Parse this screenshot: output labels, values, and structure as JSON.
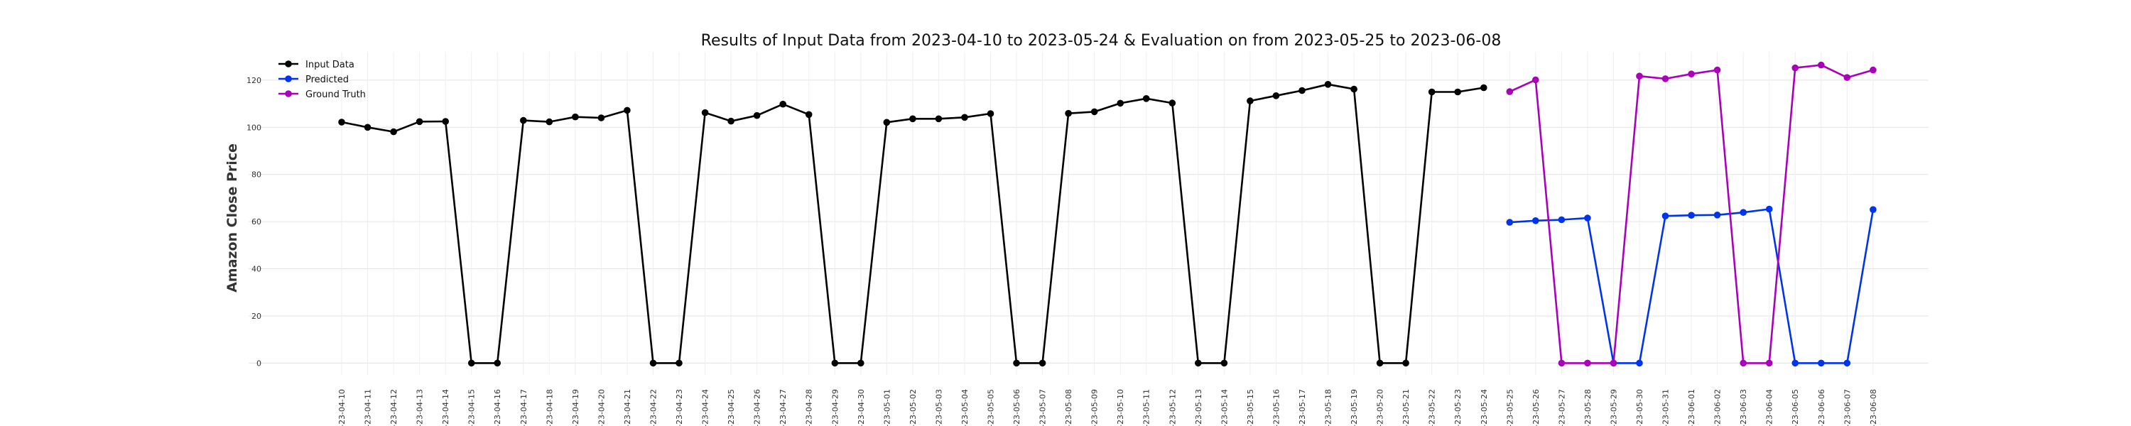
{
  "chart_data": {
    "type": "line",
    "title": "Results of Input Data from 2023-04-10 to 2023-05-24 & Evaluation on from 2023-05-25 to 2023-06-08",
    "xlabel": "",
    "ylabel": "Amazon Close Price",
    "ylim": [
      -5,
      132
    ],
    "yticks": [
      0,
      20,
      40,
      60,
      80,
      100,
      120
    ],
    "grid": true,
    "legend_position": "top-left",
    "categories": [
      "2023-04-10",
      "2023-04-11",
      "2023-04-12",
      "2023-04-13",
      "2023-04-14",
      "2023-04-15",
      "2023-04-16",
      "2023-04-17",
      "2023-04-18",
      "2023-04-19",
      "2023-04-20",
      "2023-04-21",
      "2023-04-22",
      "2023-04-23",
      "2023-04-24",
      "2023-04-25",
      "2023-04-26",
      "2023-04-27",
      "2023-04-28",
      "2023-04-29",
      "2023-04-30",
      "2023-05-01",
      "2023-05-02",
      "2023-05-03",
      "2023-05-04",
      "2023-05-05",
      "2023-05-06",
      "2023-05-07",
      "2023-05-08",
      "2023-05-09",
      "2023-05-10",
      "2023-05-11",
      "2023-05-12",
      "2023-05-13",
      "2023-05-14",
      "2023-05-15",
      "2023-05-16",
      "2023-05-17",
      "2023-05-18",
      "2023-05-19",
      "2023-05-20",
      "2023-05-21",
      "2023-05-22",
      "2023-05-23",
      "2023-05-24",
      "2023-05-25",
      "2023-05-26",
      "2023-05-27",
      "2023-05-28",
      "2023-05-29",
      "2023-05-30",
      "2023-05-31",
      "2023-06-01",
      "2023-06-02",
      "2023-06-03",
      "2023-06-04",
      "2023-06-05",
      "2023-06-06",
      "2023-06-07",
      "2023-06-08"
    ],
    "tick_labels": [
      "-23-04-10",
      "-23-04-11",
      "-23-04-12",
      "-23-04-13",
      "-23-04-14",
      "-23-04-15",
      "-23-04-16",
      "-23-04-17",
      "-23-04-18",
      "-23-04-19",
      "-23-04-20",
      "-23-04-21",
      "-23-04-22",
      "-23-04-23",
      "-23-04-24",
      "-23-04-25",
      "-23-04-26",
      "-23-04-27",
      "-23-04-28",
      "-23-04-29",
      "-23-04-30",
      "-23-05-01",
      "-23-05-02",
      "-23-05-03",
      "-23-05-04",
      "-23-05-05",
      "-23-05-06",
      "-23-05-07",
      "-23-05-08",
      "-23-05-09",
      "-23-05-10",
      "-23-05-11",
      "-23-05-12",
      "-23-05-13",
      "-23-05-14",
      "-23-05-15",
      "-23-05-16",
      "-23-05-17",
      "-23-05-18",
      "-23-05-19",
      "-23-05-20",
      "-23-05-21",
      "-23-05-22",
      "-23-05-23",
      "-23-05-24",
      "-23-05-25",
      "-23-05-26",
      "-23-05-27",
      "-23-05-28",
      "-23-05-29",
      "-23-05-30",
      "-23-05-31",
      "-23-06-01",
      "-23-06-02",
      "-23-06-03",
      "-23-06-04",
      "-23-06-05",
      "-23-06-06",
      "-23-06-07",
      "-23-06-08"
    ],
    "series": [
      {
        "name": "Input Data",
        "color": "#000000",
        "x": [
          "2023-04-10",
          "2023-04-11",
          "2023-04-12",
          "2023-04-13",
          "2023-04-14",
          "2023-04-15",
          "2023-04-16",
          "2023-04-17",
          "2023-04-18",
          "2023-04-19",
          "2023-04-20",
          "2023-04-21",
          "2023-04-22",
          "2023-04-23",
          "2023-04-24",
          "2023-04-25",
          "2023-04-26",
          "2023-04-27",
          "2023-04-28",
          "2023-04-29",
          "2023-04-30",
          "2023-05-01",
          "2023-05-02",
          "2023-05-03",
          "2023-05-04",
          "2023-05-05",
          "2023-05-06",
          "2023-05-07",
          "2023-05-08",
          "2023-05-09",
          "2023-05-10",
          "2023-05-11",
          "2023-05-12",
          "2023-05-13",
          "2023-05-14",
          "2023-05-15",
          "2023-05-16",
          "2023-05-17",
          "2023-05-18",
          "2023-05-19",
          "2023-05-20",
          "2023-05-21",
          "2023-05-22",
          "2023-05-23",
          "2023-05-24"
        ],
        "values": [
          102.2,
          100.0,
          98.1,
          102.4,
          102.5,
          0,
          0,
          102.9,
          102.3,
          104.4,
          104.0,
          107.2,
          0,
          0,
          106.2,
          102.6,
          105.0,
          109.8,
          105.4,
          0,
          0,
          102.1,
          103.6,
          103.6,
          104.2,
          105.8,
          0,
          0,
          105.9,
          106.6,
          110.2,
          112.2,
          110.3,
          0,
          0,
          111.2,
          113.4,
          115.6,
          118.2,
          116.2,
          0,
          0,
          115.0,
          115.0,
          116.8
        ]
      },
      {
        "name": "Predicted",
        "color": "#0033ee",
        "x": [
          "2023-05-25",
          "2023-05-26",
          "2023-05-27",
          "2023-05-28",
          "2023-05-29",
          "2023-05-30",
          "2023-05-31",
          "2023-06-01",
          "2023-06-02",
          "2023-06-03",
          "2023-06-04",
          "2023-06-05",
          "2023-06-06",
          "2023-06-07",
          "2023-06-08"
        ],
        "values": [
          59.7,
          60.4,
          60.8,
          61.5,
          0,
          0,
          62.4,
          62.7,
          62.8,
          63.9,
          65.3,
          0,
          0,
          0,
          65.1
        ]
      },
      {
        "name": "Ground Truth",
        "color": "#aa00bb",
        "x": [
          "2023-05-25",
          "2023-05-26",
          "2023-05-27",
          "2023-05-28",
          "2023-05-29",
          "2023-05-30",
          "2023-05-31",
          "2023-06-01",
          "2023-06-02",
          "2023-06-03",
          "2023-06-04",
          "2023-06-05",
          "2023-06-06",
          "2023-06-07",
          "2023-06-08"
        ],
        "values": [
          115.1,
          120.1,
          0,
          0,
          0,
          121.7,
          120.6,
          122.6,
          124.3,
          0,
          0,
          125.2,
          126.4,
          121.1,
          124.3
        ]
      }
    ]
  }
}
